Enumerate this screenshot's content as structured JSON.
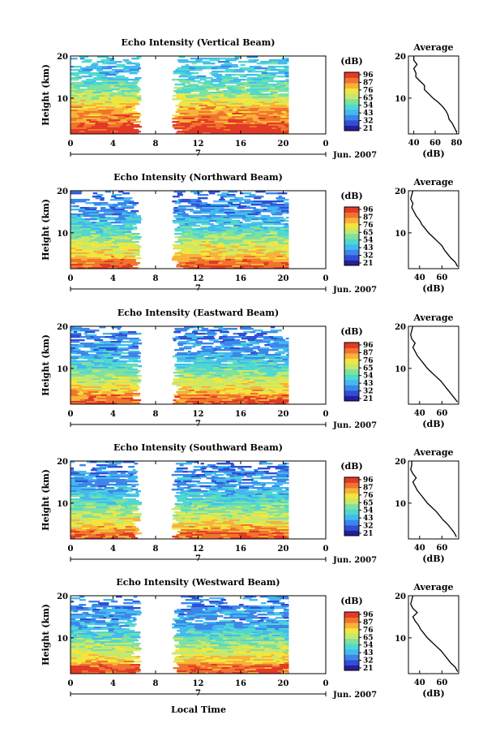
{
  "figure": {
    "common_xlabel": "Local Time",
    "date_label": "7",
    "month_label": "Jun. 2007",
    "colorbar_unit": "(dB)",
    "colorbar_ticks": [
      "96",
      "87",
      "76",
      "65",
      "54",
      "43",
      "32",
      "21"
    ],
    "palette": [
      "#2a1d96",
      "#2f4fd6",
      "#3d86e8",
      "#43b9f0",
      "#4fd8d0",
      "#7fe0a0",
      "#c6e86c",
      "#f2e63e",
      "#f8b23a",
      "#f0742e",
      "#e23a26"
    ],
    "avg_title": "Average",
    "avg_xlabel": "(dB)"
  },
  "chart_data": [
    {
      "type": "heatmap",
      "title": "Echo Intensity (Vertical Beam)",
      "ylabel": "Height (km)",
      "xlabel": "",
      "x_ticks": [
        "0",
        "4",
        "8",
        "12",
        "16",
        "20",
        "0"
      ],
      "x_range": [
        0,
        24
      ],
      "y_ticks": [
        "20",
        "10"
      ],
      "y_range": [
        1.5,
        20
      ],
      "data_gap_hours": [
        6.7,
        9.5
      ],
      "profile": {
        "title": "Average",
        "xlabel": "(dB)",
        "x_ticks": [
          "40",
          "60",
          "80"
        ],
        "x_range": [
          35,
          82
        ],
        "heights": [
          2,
          3,
          4,
          5,
          6,
          7,
          8,
          9,
          10,
          11,
          12,
          13,
          14,
          15,
          16,
          17,
          18,
          19,
          20
        ],
        "values": [
          80,
          78,
          76,
          73,
          72,
          70,
          67,
          63,
          58,
          54,
          50,
          50,
          46,
          42,
          42,
          40,
          43,
          40,
          40
        ]
      }
    },
    {
      "type": "heatmap",
      "title": "Echo Intensity (Northward Beam)",
      "ylabel": "Height (km)",
      "xlabel": "",
      "x_ticks": [
        "0",
        "4",
        "8",
        "12",
        "16",
        "20",
        "0"
      ],
      "x_range": [
        0,
        24
      ],
      "y_ticks": [
        "20",
        "10"
      ],
      "y_range": [
        1.5,
        20
      ],
      "data_gap_hours": [
        6.7,
        9.5
      ],
      "profile": {
        "title": "Average",
        "xlabel": "(dB)",
        "x_ticks": [
          "40",
          "60"
        ],
        "x_range": [
          30,
          75
        ],
        "heights": [
          2,
          3,
          4,
          5,
          6,
          7,
          8,
          9,
          10,
          11,
          12,
          13,
          14,
          15,
          16,
          17,
          18,
          19,
          20
        ],
        "values": [
          74,
          72,
          68,
          65,
          62,
          60,
          56,
          52,
          48,
          45,
          42,
          40,
          37,
          35,
          33,
          34,
          32,
          33,
          34
        ]
      }
    },
    {
      "type": "heatmap",
      "title": "Echo Intensity (Eastward Beam)",
      "ylabel": "Height (km)",
      "xlabel": "",
      "x_ticks": [
        "0",
        "4",
        "8",
        "12",
        "16",
        "20",
        "0"
      ],
      "x_range": [
        0,
        24
      ],
      "y_ticks": [
        "20",
        "10"
      ],
      "y_range": [
        1.5,
        20
      ],
      "data_gap_hours": [
        6.7,
        9.5
      ],
      "profile": {
        "title": "Average",
        "xlabel": "(dB)",
        "x_ticks": [
          "40",
          "60"
        ],
        "x_range": [
          30,
          75
        ],
        "heights": [
          2,
          3,
          4,
          5,
          6,
          7,
          8,
          9,
          10,
          11,
          12,
          13,
          14,
          15,
          16,
          17,
          18,
          19,
          20
        ],
        "values": [
          74,
          71,
          68,
          65,
          62,
          59,
          55,
          51,
          47,
          44,
          41,
          38,
          36,
          34,
          36,
          33,
          32,
          33,
          34
        ]
      }
    },
    {
      "type": "heatmap",
      "title": "Echo Intensity (Southward Beam)",
      "ylabel": "Height (km)",
      "xlabel": "",
      "x_ticks": [
        "0",
        "4",
        "8",
        "12",
        "16",
        "20",
        "0"
      ],
      "x_range": [
        0,
        24
      ],
      "y_ticks": [
        "20",
        "10"
      ],
      "y_range": [
        1.5,
        20
      ],
      "data_gap_hours": [
        6.7,
        9.5
      ],
      "profile": {
        "title": "Average",
        "xlabel": "(dB)",
        "x_ticks": [
          "40",
          "60"
        ],
        "x_range": [
          30,
          75
        ],
        "heights": [
          2,
          3,
          4,
          5,
          6,
          7,
          8,
          9,
          10,
          11,
          12,
          13,
          14,
          15,
          16,
          17,
          18,
          19,
          20
        ],
        "values": [
          73,
          71,
          68,
          65,
          61,
          58,
          55,
          51,
          47,
          44,
          41,
          38,
          36,
          34,
          37,
          34,
          32,
          33,
          33
        ]
      }
    },
    {
      "type": "heatmap",
      "title": "Echo Intensity (Westward Beam)",
      "ylabel": "Height (km)",
      "xlabel": "",
      "x_ticks": [
        "0",
        "4",
        "8",
        "12",
        "16",
        "20",
        "0"
      ],
      "x_range": [
        0,
        24
      ],
      "y_ticks": [
        "20",
        "10"
      ],
      "y_range": [
        1.5,
        20
      ],
      "data_gap_hours": [
        6.7,
        9.5
      ],
      "profile": {
        "title": "Average",
        "xlabel": "(dB)",
        "x_ticks": [
          "40",
          "60"
        ],
        "x_range": [
          30,
          75
        ],
        "heights": [
          2,
          3,
          4,
          5,
          6,
          7,
          8,
          9,
          10,
          11,
          12,
          13,
          14,
          15,
          16,
          17,
          18,
          19,
          20
        ],
        "values": [
          74,
          72,
          68,
          65,
          62,
          59,
          55,
          51,
          47,
          44,
          41,
          39,
          36,
          34,
          38,
          34,
          32,
          33,
          34
        ]
      }
    }
  ]
}
